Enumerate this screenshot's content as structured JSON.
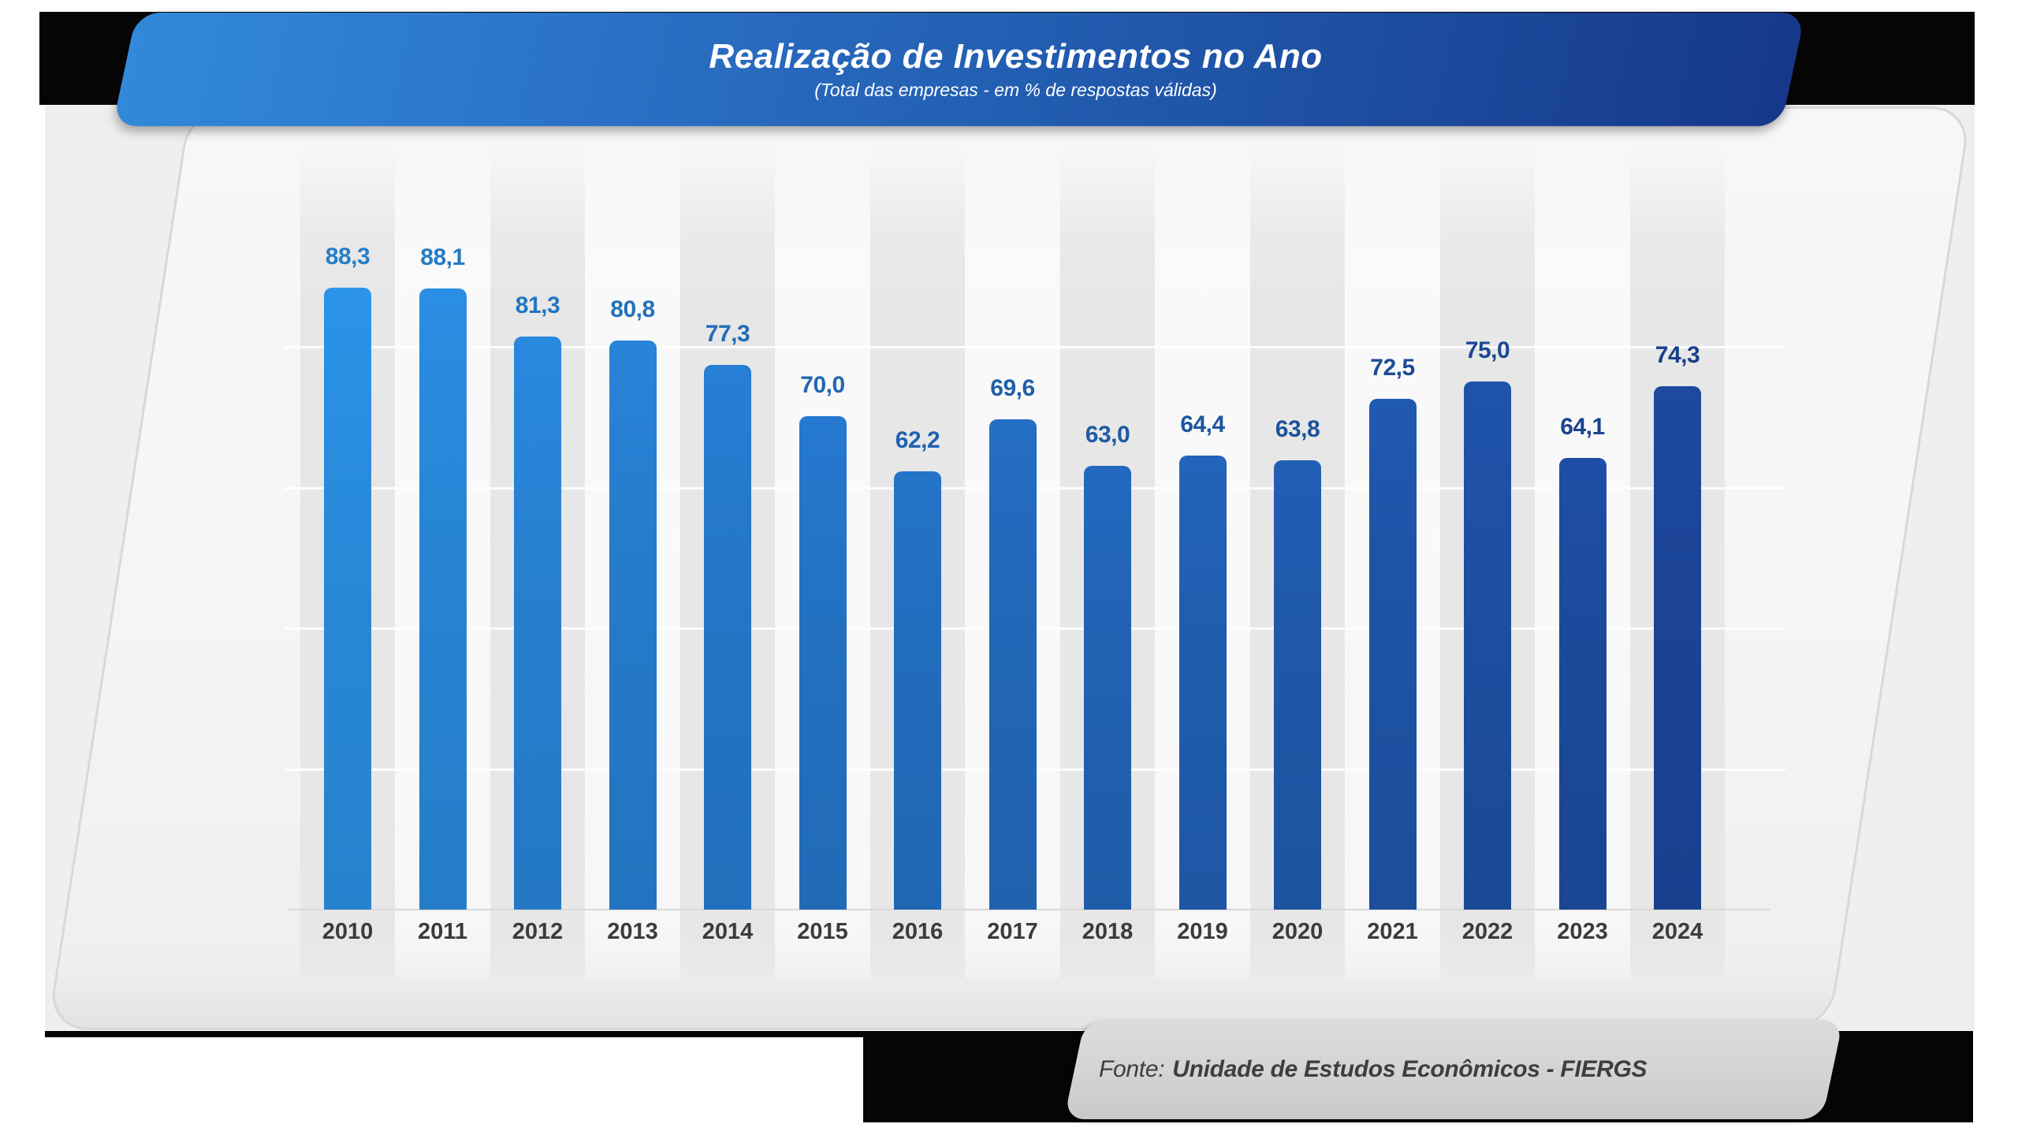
{
  "header": {
    "title": "Realização de Investimentos no Ano",
    "subtitle": "(Total das empresas - em % de respostas válidas)"
  },
  "footer": {
    "source_prefix": "Fonte:",
    "source_name": "Unidade de Estudos Econômicos - FIERGS"
  },
  "chart_data": {
    "type": "bar",
    "title": "Realização de Investimentos no Ano",
    "subtitle": "(Total das empresas - em % de respostas válidas)",
    "xlabel": "",
    "ylabel": "% de respostas válidas",
    "categories": [
      "2010",
      "2011",
      "2012",
      "2013",
      "2014",
      "2015",
      "2016",
      "2017",
      "2018",
      "2019",
      "2020",
      "2021",
      "2022",
      "2023",
      "2024"
    ],
    "values": [
      88.3,
      88.1,
      81.3,
      80.8,
      77.3,
      70.0,
      62.2,
      69.6,
      63.0,
      64.4,
      63.8,
      72.5,
      75.0,
      64.1,
      74.3
    ],
    "value_labels": [
      "88,3",
      "88,1",
      "81,3",
      "80,8",
      "77,3",
      "70,0",
      "62,2",
      "69,6",
      "63,0",
      "64,4",
      "63,8",
      "72,5",
      "75,0",
      "64,1",
      "74,3"
    ],
    "ylim": [
      0,
      100
    ],
    "gridline_values": [
      20,
      40,
      60,
      80
    ],
    "grid": "horizontal white lines, no axis labels",
    "legend": "none",
    "colors": {
      "bar_gradient_start": "#288ada",
      "bar_gradient_end": "#1b4496",
      "banner_left": "#3189da",
      "banner_right": "#16388a",
      "year_label": "#3b3b3b",
      "stripe_gray": "#e7e7e7",
      "panel_bg": "#f5f5f5"
    }
  }
}
